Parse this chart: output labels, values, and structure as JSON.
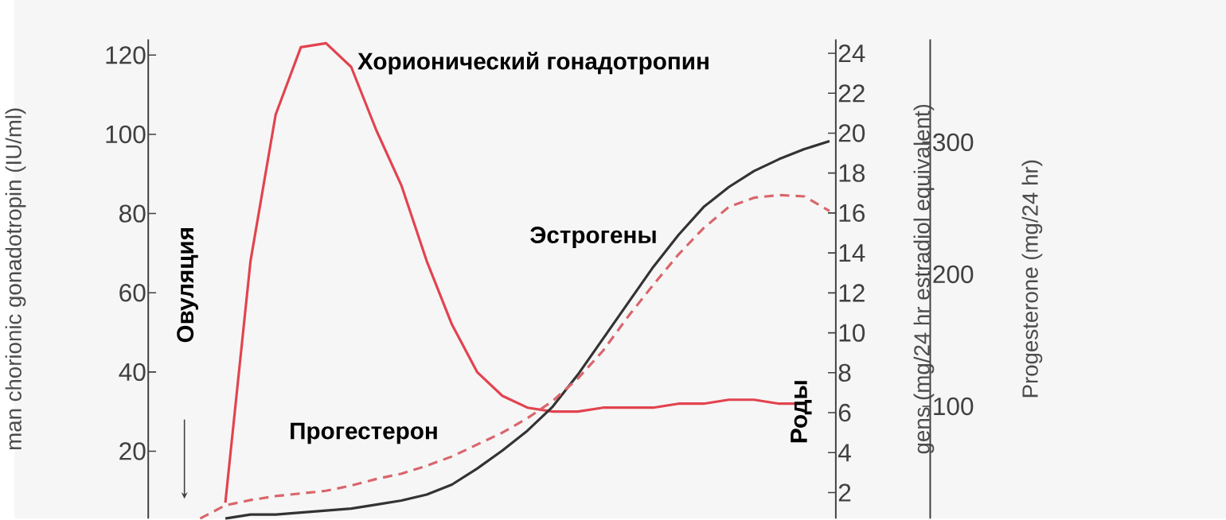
{
  "chart_data": {
    "type": "line",
    "ylabel": "man chorionic gonadotropin (IU/ml)",
    "y2label": "gens (mg/24 hr estradiol equivalent)",
    "y3label": "Progesterone (mg/24 hr)",
    "categories": [
      null,
      null,
      null,
      null,
      null,
      null,
      null,
      null,
      null,
      null,
      null,
      null,
      null,
      null,
      null,
      null,
      null,
      null,
      null,
      null,
      null,
      null,
      null,
      null,
      null,
      null
    ],
    "series": [
      {
        "name": "Хорионический гонадотропин",
        "color": "#e2434f",
        "values": [
          null,
          7,
          68,
          105,
          122,
          123,
          117,
          101,
          87,
          68,
          52,
          40,
          34,
          31,
          30,
          30,
          31,
          31,
          31,
          32,
          32,
          33,
          33,
          32,
          32,
          null
        ]
      },
      {
        "name": "Эстрогены",
        "color": "#333333",
        "axis": "y2",
        "values": [
          null,
          0.7,
          0.9,
          0.9,
          1.0,
          1.1,
          1.2,
          1.4,
          1.6,
          1.9,
          2.4,
          3.2,
          4.1,
          5.1,
          6.3,
          7.9,
          9.7,
          11.5,
          13.3,
          14.9,
          16.3,
          17.3,
          18.1,
          18.7,
          19.2,
          19.6
        ]
      },
      {
        "name": "Прогестерон",
        "color": "#d9656b",
        "axis": "y3",
        "line_style": "dashed",
        "values": [
          15,
          25,
          29,
          32,
          34,
          36,
          40,
          45,
          49,
          55,
          62,
          71,
          80,
          91,
          104,
          121,
          142,
          168,
          192,
          215,
          235,
          251,
          258,
          260,
          259,
          248
        ]
      }
    ],
    "ylim": [
      3,
      124
    ],
    "yticks": [
      20,
      40,
      60,
      80,
      100,
      120
    ],
    "y2lim": [
      0.7,
      24.7
    ],
    "y2ticks": [
      2,
      4,
      6,
      8,
      10,
      12,
      14,
      16,
      18,
      20,
      22,
      24
    ],
    "y3lim": [
      15,
      378
    ],
    "y3ticks": [
      100,
      200,
      300
    ],
    "annotations": [
      "Овуляция",
      "Роды"
    ],
    "marker": "none",
    "line_style": "solid",
    "grid": false
  }
}
